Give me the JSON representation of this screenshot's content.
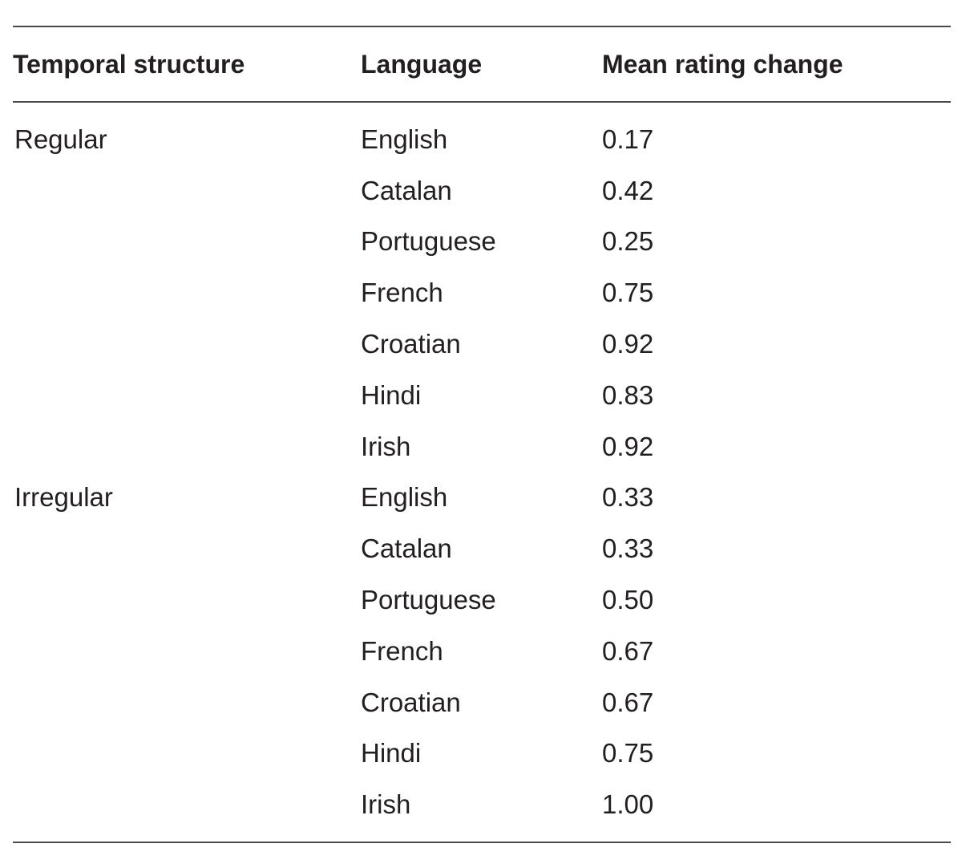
{
  "table": {
    "headers": [
      "Temporal structure",
      "Language",
      "Mean rating change"
    ],
    "rows": [
      [
        "Regular",
        "English",
        "0.17"
      ],
      [
        "",
        "Catalan",
        "0.42"
      ],
      [
        "",
        "Portuguese",
        "0.25"
      ],
      [
        "",
        "French",
        "0.75"
      ],
      [
        "",
        "Croatian",
        "0.92"
      ],
      [
        "",
        "Hindi",
        "0.83"
      ],
      [
        "",
        "Irish",
        "0.92"
      ],
      [
        "Irregular",
        "English",
        "0.33"
      ],
      [
        "",
        "Catalan",
        "0.33"
      ],
      [
        "",
        "Portuguese",
        "0.50"
      ],
      [
        "",
        "French",
        "0.67"
      ],
      [
        "",
        "Croatian",
        "0.67"
      ],
      [
        "",
        "Hindi",
        "0.75"
      ],
      [
        "",
        "Irish",
        "1.00"
      ]
    ]
  }
}
